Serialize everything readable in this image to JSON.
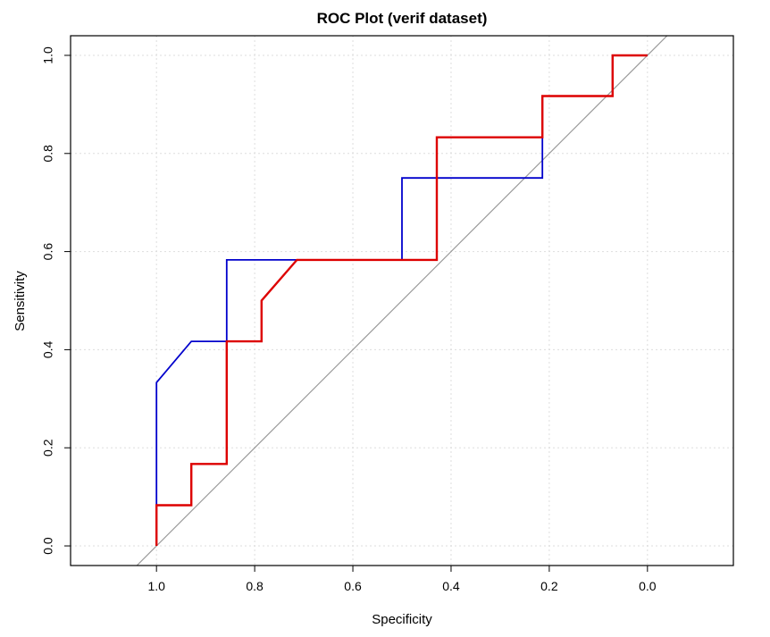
{
  "chart_data": {
    "type": "line",
    "title": "ROC Plot (verif dataset)",
    "xlabel": "Specificity",
    "ylabel": "Sensitivity",
    "x_reversed": true,
    "xlim": [
      1.175,
      -0.175
    ],
    "ylim": [
      -0.04,
      1.04
    ],
    "xticks": [
      "1.0",
      "0.8",
      "0.6",
      "0.4",
      "0.2",
      "0.0"
    ],
    "yticks": [
      "0.0",
      "0.2",
      "0.4",
      "0.6",
      "0.8",
      "1.0"
    ],
    "grid": true,
    "legend": "none",
    "series": [
      {
        "color": "#0000cc",
        "points": [
          [
            1.0,
            0.0
          ],
          [
            1.0,
            0.333
          ],
          [
            0.929,
            0.417
          ],
          [
            0.857,
            0.417
          ],
          [
            0.857,
            0.583
          ],
          [
            0.5,
            0.583
          ],
          [
            0.5,
            0.75
          ],
          [
            0.214,
            0.75
          ],
          [
            0.214,
            0.917
          ],
          [
            0.071,
            0.917
          ],
          [
            0.071,
            1.0
          ],
          [
            0.0,
            1.0
          ]
        ]
      },
      {
        "color": "#dd0000",
        "points": [
          [
            1.0,
            0.0
          ],
          [
            1.0,
            0.083
          ],
          [
            0.929,
            0.083
          ],
          [
            0.929,
            0.167
          ],
          [
            0.857,
            0.167
          ],
          [
            0.857,
            0.417
          ],
          [
            0.786,
            0.417
          ],
          [
            0.786,
            0.5
          ],
          [
            0.714,
            0.583
          ],
          [
            0.429,
            0.583
          ],
          [
            0.429,
            0.833
          ],
          [
            0.214,
            0.833
          ],
          [
            0.214,
            0.917
          ],
          [
            0.071,
            0.917
          ],
          [
            0.071,
            1.0
          ],
          [
            0.0,
            1.0
          ]
        ]
      }
    ],
    "reference_line": {
      "color": "#999999",
      "from": [
        1.04,
        -0.04
      ],
      "to": [
        -0.04,
        1.04
      ]
    }
  }
}
